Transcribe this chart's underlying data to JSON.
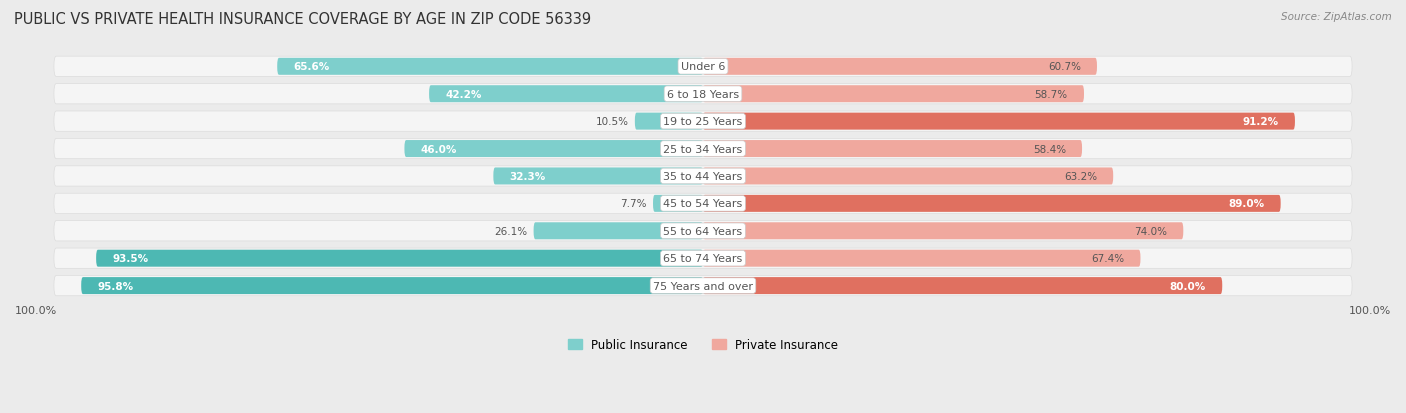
{
  "title": "PUBLIC VS PRIVATE HEALTH INSURANCE COVERAGE BY AGE IN ZIP CODE 56339",
  "source": "Source: ZipAtlas.com",
  "categories": [
    "Under 6",
    "6 to 18 Years",
    "19 to 25 Years",
    "25 to 34 Years",
    "35 to 44 Years",
    "45 to 54 Years",
    "55 to 64 Years",
    "65 to 74 Years",
    "75 Years and over"
  ],
  "public_values": [
    65.6,
    42.2,
    10.5,
    46.0,
    32.3,
    7.7,
    26.1,
    93.5,
    95.8
  ],
  "private_values": [
    60.7,
    58.7,
    91.2,
    58.4,
    63.2,
    89.0,
    74.0,
    67.4,
    80.0
  ],
  "public_color_strong": "#4db8b3",
  "public_color_light": "#7ecfcc",
  "private_color_strong": "#e07060",
  "private_color_light": "#f0a89e",
  "bg_color": "#ebebeb",
  "row_bg": "#f5f5f5",
  "row_border": "#dcdcdc",
  "max_value": 100.0,
  "title_fontsize": 10.5,
  "label_fontsize": 8.0,
  "value_fontsize": 7.5,
  "legend_fontsize": 8.5,
  "axis_label": "100.0%",
  "strong_threshold": 80.0
}
